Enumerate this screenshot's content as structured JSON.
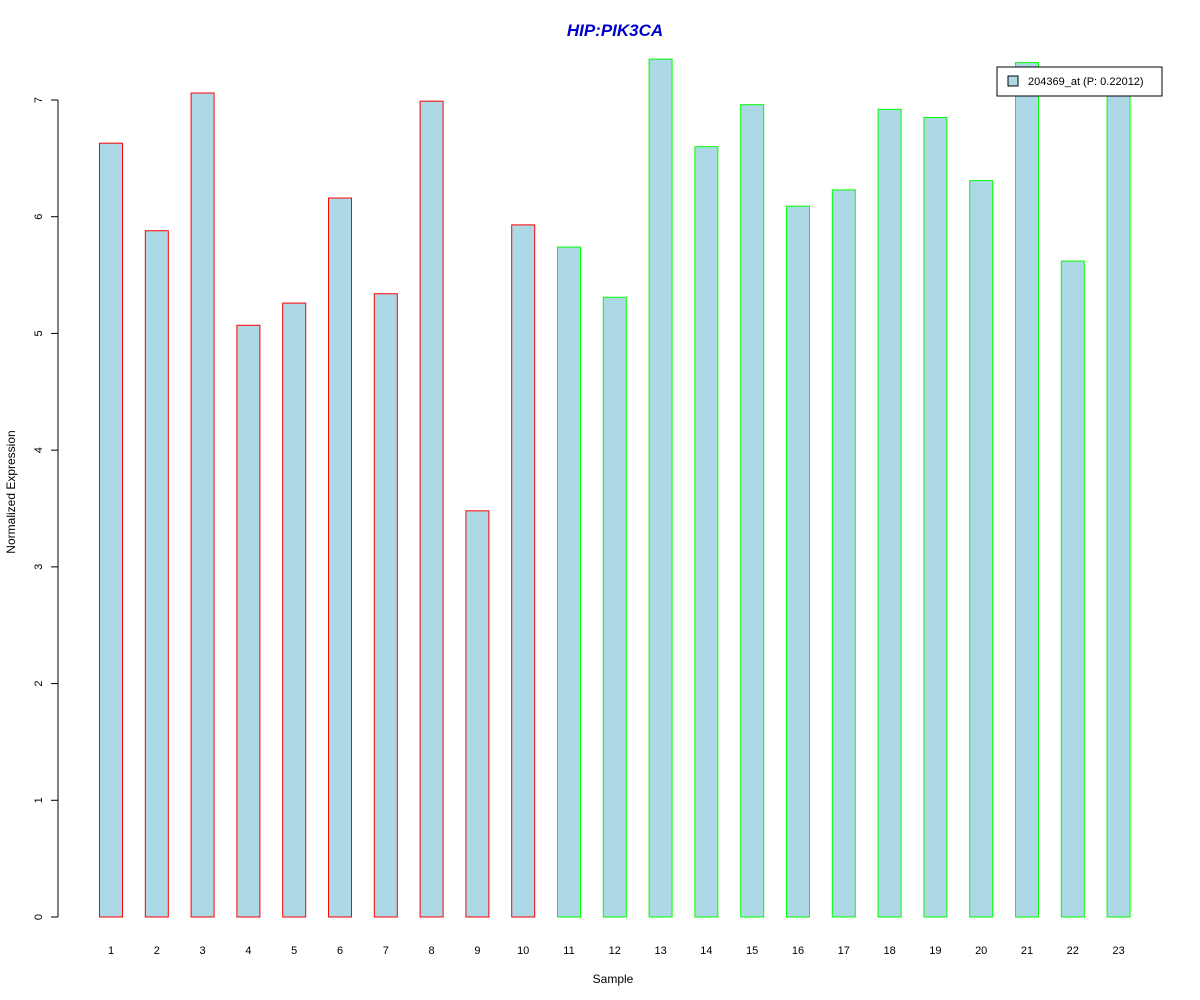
{
  "chart_data": {
    "type": "bar",
    "title": "HIP:PIK3CA",
    "xlabel": "Sample",
    "ylabel": "Normalized Expression",
    "categories": [
      "1",
      "2",
      "3",
      "4",
      "5",
      "6",
      "7",
      "8",
      "9",
      "10",
      "11",
      "12",
      "13",
      "14",
      "15",
      "16",
      "17",
      "18",
      "19",
      "20",
      "21",
      "22",
      "23"
    ],
    "series": [
      {
        "name": "204369_at (P: 0.22012)",
        "values": [
          6.63,
          5.88,
          7.06,
          5.07,
          5.26,
          6.16,
          5.34,
          6.99,
          3.48,
          5.93,
          5.74,
          5.31,
          7.35,
          6.6,
          6.96,
          6.09,
          6.23,
          6.92,
          6.85,
          6.31,
          7.32,
          5.62,
          7.14
        ]
      }
    ],
    "bar_fill": "#add8e6",
    "border_colors": [
      "#ff0000",
      "#ff0000",
      "#ff0000",
      "#ff0000",
      "#ff0000",
      "#ff0000",
      "#ff0000",
      "#ff0000",
      "#ff0000",
      "#ff0000",
      "#00ff00",
      "#00ff00",
      "#00ff00",
      "#00ff00",
      "#00ff00",
      "#00ff00",
      "#00ff00",
      "#00ff00",
      "#00ff00",
      "#00ff00",
      "#00ff00",
      "#00ff00",
      "#00ff00"
    ],
    "title_color": "#0000cd",
    "ylim": [
      0,
      7.35
    ],
    "yticks": [
      0,
      1,
      2,
      3,
      4,
      5,
      6,
      7
    ],
    "legend_position": "top-right",
    "grid": false
  }
}
